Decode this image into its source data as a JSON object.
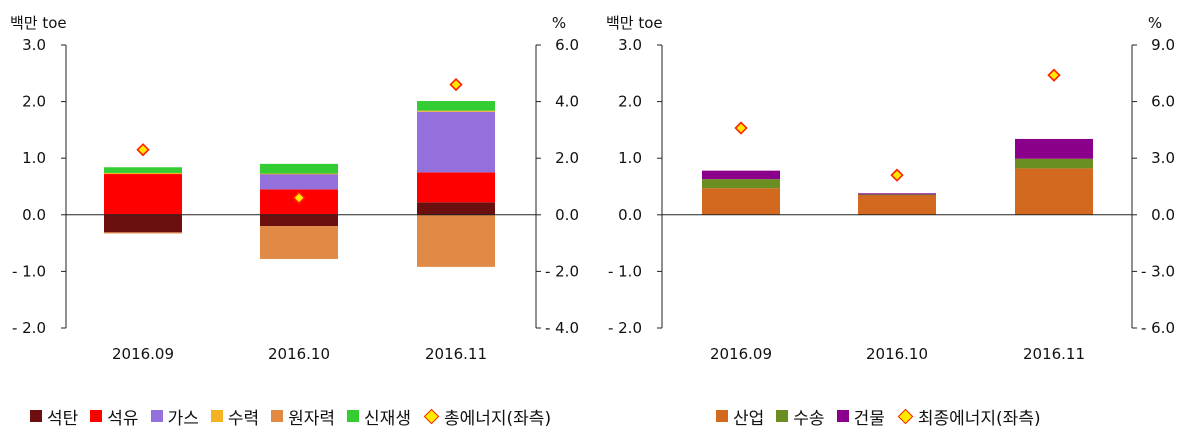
{
  "colors": {
    "coal": "#6b0f0f",
    "oil": "#ff0000",
    "gas": "#9370db",
    "hydro": "#f5b223",
    "nuclear": "#e08a45",
    "renewable": "#33cc33",
    "industry": "#d2691e",
    "transport": "#6b8e23",
    "building": "#8b008b",
    "marker_fill": "#ffea00",
    "marker_edge": "#ff2000"
  },
  "chart_data": [
    {
      "type": "bar",
      "stacked": true,
      "left_unit": "백만 toe",
      "right_unit": "%",
      "categories": [
        "2016.09",
        "2016.10",
        "2016.11"
      ],
      "left_ylim": [
        -2.0,
        3.0
      ],
      "right_ylim": [
        -4.0,
        6.0
      ],
      "left_ticks": [
        "3.0",
        "2.0",
        "1.0",
        "0.0",
        "- 1.0",
        "- 2.0"
      ],
      "right_ticks": [
        "6.0",
        "4.0",
        "2.0",
        "0.0",
        "- 2.0",
        "- 4.0"
      ],
      "series": [
        {
          "name": "석탄",
          "color_key": "coal",
          "values": [
            -0.31,
            -0.2,
            0.22
          ]
        },
        {
          "name": "석유",
          "color_key": "oil",
          "values": [
            0.72,
            0.45,
            0.53
          ]
        },
        {
          "name": "가스",
          "color_key": "gas",
          "values": [
            0.0,
            0.27,
            1.07
          ]
        },
        {
          "name": "수력",
          "color_key": "hydro",
          "values": [
            0.02,
            0.01,
            0.02
          ]
        },
        {
          "name": "원자력",
          "color_key": "nuclear",
          "values": [
            -0.02,
            -0.58,
            -0.92
          ]
        },
        {
          "name": "신재생",
          "color_key": "renewable",
          "values": [
            0.1,
            0.17,
            0.17
          ]
        }
      ],
      "marker_series": {
        "name": "총에너지(좌측)",
        "axis": "right",
        "values": [
          2.3,
          0.6,
          4.6
        ]
      }
    },
    {
      "type": "bar",
      "stacked": true,
      "left_unit": "백만 toe",
      "right_unit": "%",
      "categories": [
        "2016.09",
        "2016.10",
        "2016.11"
      ],
      "left_ylim": [
        -2.0,
        3.0
      ],
      "right_ylim": [
        -6.0,
        9.0
      ],
      "left_ticks": [
        "3.0",
        "2.0",
        "1.0",
        "0.0",
        "- 1.0",
        "- 2.0"
      ],
      "right_ticks": [
        "9.0",
        "6.0",
        "3.0",
        "0.0",
        "- 3.0",
        "- 6.0"
      ],
      "series": [
        {
          "name": "산업",
          "color_key": "industry",
          "values": [
            0.47,
            0.35,
            0.82
          ]
        },
        {
          "name": "수송",
          "color_key": "transport",
          "values": [
            0.16,
            0.01,
            0.17
          ]
        },
        {
          "name": "건물",
          "color_key": "building",
          "values": [
            0.15,
            0.02,
            0.35
          ]
        }
      ],
      "marker_series": {
        "name": "최종에너지(좌측)",
        "axis": "right",
        "values": [
          4.6,
          2.1,
          7.4
        ]
      }
    }
  ]
}
